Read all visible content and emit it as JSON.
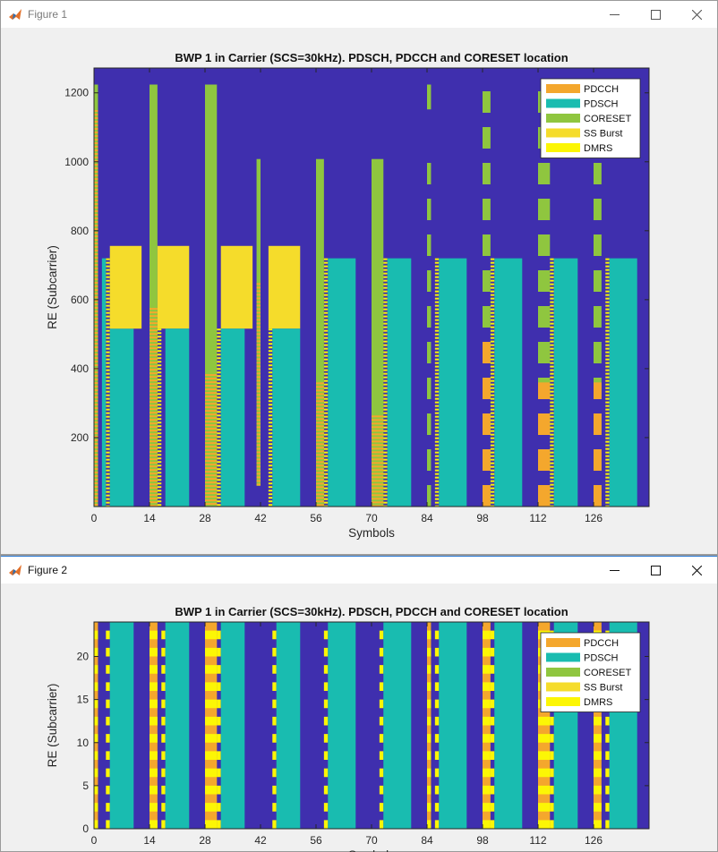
{
  "windows": [
    {
      "title": "Figure 1",
      "minimize_icon": "minimize-icon",
      "maximize_icon": "maximize-icon",
      "close_icon": "close-icon"
    },
    {
      "title": "Figure 2",
      "minimize_icon": "minimize-icon",
      "maximize_icon": "maximize-icon",
      "close_icon": "close-icon"
    }
  ],
  "colors": {
    "background": "#3f2fae",
    "PDCCH": "#f4a72d",
    "PDSCH": "#19bcb0",
    "CORESET": "#8fc63f",
    "SS Burst": "#f5dc2b",
    "DMRS": "#fcf605",
    "window_bg": "#f0f0f0"
  },
  "chart_data": [
    {
      "type": "heatmap",
      "title": "BWP 1 in Carrier (SCS=30kHz). PDSCH, PDCCH and CORESET location",
      "xlabel": "Symbols",
      "ylabel": "RE (Subcarrier)",
      "xlim": [
        0,
        140
      ],
      "ylim": [
        0,
        1272
      ],
      "xticks": [
        0,
        14,
        28,
        42,
        56,
        70,
        84,
        98,
        112,
        126
      ],
      "yticks": [
        200,
        400,
        600,
        800,
        1000,
        1200
      ],
      "grid": false,
      "legend": {
        "placement": "top-right",
        "entries": [
          "PDCCH",
          "PDSCH",
          "CORESET",
          "SS Burst",
          "DMRS"
        ]
      },
      "regions": [
        {
          "type": "CORESET",
          "x": [
            0,
            1
          ],
          "y": [
            0,
            1224
          ]
        },
        {
          "type": "PDCCH",
          "x": [
            0,
            1
          ],
          "y": [
            0,
            1150
          ],
          "striped": true
        },
        {
          "type": "DMRS",
          "x": [
            3,
            4
          ],
          "y": [
            0,
            720
          ],
          "striped": true
        },
        {
          "type": "PDSCH",
          "x": [
            2,
            3
          ],
          "y": [
            0,
            720
          ]
        },
        {
          "type": "PDSCH",
          "x": [
            4,
            10
          ],
          "y": [
            0,
            516
          ]
        },
        {
          "type": "SS Burst",
          "x": [
            4,
            12
          ],
          "y": [
            516,
            756
          ]
        },
        {
          "type": "CORESET",
          "x": [
            14,
            16
          ],
          "y": [
            0,
            1224
          ]
        },
        {
          "type": "PDCCH",
          "x": [
            14,
            16
          ],
          "y": [
            0,
            576
          ],
          "striped": true
        },
        {
          "type": "DMRS",
          "x": [
            16,
            17
          ],
          "y": [
            0,
            516
          ],
          "striped": true
        },
        {
          "type": "SS Burst",
          "x": [
            16,
            24
          ],
          "y": [
            516,
            756
          ]
        },
        {
          "type": "PDSCH",
          "x": [
            18,
            24
          ],
          "y": [
            0,
            516
          ]
        },
        {
          "type": "CORESET",
          "x": [
            28,
            31
          ],
          "y": [
            0,
            1224
          ]
        },
        {
          "type": "PDCCH",
          "x": [
            28,
            31
          ],
          "y": [
            0,
            384
          ],
          "striped": true
        },
        {
          "type": "DMRS",
          "x": [
            31,
            32
          ],
          "y": [
            0,
            516
          ],
          "striped": true
        },
        {
          "type": "SS Burst",
          "x": [
            32,
            40
          ],
          "y": [
            516,
            756
          ]
        },
        {
          "type": "PDSCH",
          "x": [
            32,
            38
          ],
          "y": [
            0,
            516
          ]
        },
        {
          "type": "CORESET",
          "x": [
            41,
            42
          ],
          "y": [
            60,
            1008
          ]
        },
        {
          "type": "PDCCH",
          "x": [
            41,
            42
          ],
          "y": [
            60,
            648
          ],
          "striped": true
        },
        {
          "type": "DMRS",
          "x": [
            44,
            45
          ],
          "y": [
            0,
            516
          ],
          "striped": true
        },
        {
          "type": "SS Burst",
          "x": [
            44,
            52
          ],
          "y": [
            516,
            756
          ]
        },
        {
          "type": "PDSCH",
          "x": [
            45,
            52
          ],
          "y": [
            0,
            516
          ]
        },
        {
          "type": "CORESET",
          "x": [
            56,
            58
          ],
          "y": [
            0,
            1008
          ]
        },
        {
          "type": "PDCCH",
          "x": [
            56,
            58
          ],
          "y": [
            0,
            360
          ],
          "striped": true
        },
        {
          "type": "DMRS",
          "x": [
            58,
            59
          ],
          "y": [
            0,
            720
          ],
          "striped": true
        },
        {
          "type": "PDSCH",
          "x": [
            59,
            66
          ],
          "y": [
            0,
            720
          ]
        },
        {
          "type": "CORESET",
          "x": [
            70,
            73
          ],
          "y": [
            0,
            1008
          ]
        },
        {
          "type": "PDCCH",
          "x": [
            70,
            73
          ],
          "y": [
            0,
            264
          ],
          "striped": true
        },
        {
          "type": "DMRS",
          "x": [
            73,
            74
          ],
          "y": [
            0,
            720
          ],
          "striped": true
        },
        {
          "type": "PDSCH",
          "x": [
            74,
            80
          ],
          "y": [
            0,
            720
          ]
        },
        {
          "type": "CORESET",
          "x": [
            84,
            85
          ],
          "y": [
            1152,
            1224
          ]
        },
        {
          "type": "CORESET",
          "x": [
            84,
            85
          ],
          "y": [
            0,
            1008
          ],
          "segmented": true
        },
        {
          "type": "DMRS",
          "x": [
            86,
            87
          ],
          "y": [
            0,
            720
          ],
          "striped": true
        },
        {
          "type": "PDSCH",
          "x": [
            87,
            94
          ],
          "y": [
            0,
            720
          ]
        },
        {
          "type": "CORESET",
          "x": [
            98,
            100
          ],
          "y": [
            0,
            1224
          ],
          "segmented": true
        },
        {
          "type": "PDCCH",
          "x": [
            98,
            100
          ],
          "y": [
            0,
            504
          ],
          "segmented": true
        },
        {
          "type": "DMRS",
          "x": [
            100,
            101
          ],
          "y": [
            0,
            720
          ],
          "striped": true
        },
        {
          "type": "PDSCH",
          "x": [
            101,
            108
          ],
          "y": [
            0,
            720
          ]
        },
        {
          "type": "CORESET",
          "x": [
            112,
            115
          ],
          "y": [
            0,
            1224
          ],
          "segmented": true
        },
        {
          "type": "PDCCH",
          "x": [
            112,
            115
          ],
          "y": [
            0,
            360
          ],
          "segmented": true
        },
        {
          "type": "DMRS",
          "x": [
            115,
            116
          ],
          "y": [
            0,
            720
          ],
          "striped": true
        },
        {
          "type": "PDSCH",
          "x": [
            116,
            122
          ],
          "y": [
            0,
            720
          ]
        },
        {
          "type": "CORESET",
          "x": [
            126,
            128
          ],
          "y": [
            0,
            1224
          ],
          "segmented": true
        },
        {
          "type": "PDCCH",
          "x": [
            126,
            128
          ],
          "y": [
            0,
            360
          ],
          "segmented": true
        },
        {
          "type": "DMRS",
          "x": [
            129,
            130
          ],
          "y": [
            0,
            720
          ],
          "striped": true
        },
        {
          "type": "PDSCH",
          "x": [
            130,
            137
          ],
          "y": [
            0,
            720
          ]
        }
      ]
    },
    {
      "type": "heatmap",
      "title": "BWP 1 in Carrier (SCS=30kHz). PDSCH, PDCCH and CORESET location",
      "xlabel": "Symbols",
      "ylabel": "RE (Subcarrier)",
      "xlim": [
        0,
        140
      ],
      "ylim": [
        0,
        24
      ],
      "xticks": [
        0,
        14,
        28,
        42,
        56,
        70,
        84,
        98,
        112,
        126
      ],
      "yticks": [
        0,
        5,
        10,
        15,
        20
      ],
      "grid": false,
      "legend": {
        "placement": "top-right",
        "entries": [
          "PDCCH",
          "PDSCH",
          "CORESET",
          "SS Burst",
          "DMRS"
        ]
      },
      "regions": [
        {
          "type": "PDCCH",
          "x": [
            0,
            1
          ],
          "y": [
            0,
            24
          ]
        },
        {
          "type": "DMRS",
          "x": [
            0,
            1
          ],
          "y": [
            0,
            24
          ],
          "dashed": true
        },
        {
          "type": "DMRS",
          "x": [
            3,
            4
          ],
          "y": [
            0,
            24
          ],
          "dashed": true
        },
        {
          "type": "PDSCH",
          "x": [
            4,
            10
          ],
          "y": [
            0,
            24
          ]
        },
        {
          "type": "PDCCH",
          "x": [
            14,
            16
          ],
          "y": [
            0,
            24
          ]
        },
        {
          "type": "DMRS",
          "x": [
            14,
            16
          ],
          "y": [
            0,
            24
          ],
          "dashed": true
        },
        {
          "type": "DMRS",
          "x": [
            17,
            18
          ],
          "y": [
            0,
            24
          ],
          "dashed": true
        },
        {
          "type": "PDSCH",
          "x": [
            18,
            24
          ],
          "y": [
            0,
            24
          ]
        },
        {
          "type": "PDCCH",
          "x": [
            28,
            31
          ],
          "y": [
            0,
            24
          ]
        },
        {
          "type": "DMRS",
          "x": [
            28,
            31
          ],
          "y": [
            0,
            24
          ],
          "dashed": true
        },
        {
          "type": "DMRS",
          "x": [
            31,
            32
          ],
          "y": [
            0,
            24
          ],
          "dashed": true
        },
        {
          "type": "PDSCH",
          "x": [
            32,
            38
          ],
          "y": [
            0,
            24
          ]
        },
        {
          "type": "DMRS",
          "x": [
            45,
            46
          ],
          "y": [
            0,
            24
          ],
          "dashed": true
        },
        {
          "type": "PDSCH",
          "x": [
            46,
            52
          ],
          "y": [
            0,
            24
          ]
        },
        {
          "type": "DMRS",
          "x": [
            58,
            59
          ],
          "y": [
            0,
            24
          ],
          "dashed": true
        },
        {
          "type": "PDSCH",
          "x": [
            59,
            66
          ],
          "y": [
            0,
            24
          ]
        },
        {
          "type": "DMRS",
          "x": [
            72,
            73
          ],
          "y": [
            0,
            24
          ],
          "dashed": true
        },
        {
          "type": "PDSCH",
          "x": [
            73,
            80
          ],
          "y": [
            0,
            24
          ]
        },
        {
          "type": "PDCCH",
          "x": [
            84,
            85
          ],
          "y": [
            0,
            24
          ]
        },
        {
          "type": "DMRS",
          "x": [
            84,
            85
          ],
          "y": [
            0,
            24
          ],
          "dashed": true
        },
        {
          "type": "DMRS",
          "x": [
            86,
            87
          ],
          "y": [
            0,
            24
          ],
          "dashed": true
        },
        {
          "type": "PDSCH",
          "x": [
            87,
            94
          ],
          "y": [
            0,
            24
          ]
        },
        {
          "type": "PDCCH",
          "x": [
            98,
            100
          ],
          "y": [
            0,
            24
          ]
        },
        {
          "type": "DMRS",
          "x": [
            98,
            100
          ],
          "y": [
            0,
            24
          ],
          "dashed": true
        },
        {
          "type": "DMRS",
          "x": [
            100,
            101
          ],
          "y": [
            0,
            24
          ],
          "dashed": true
        },
        {
          "type": "PDSCH",
          "x": [
            101,
            108
          ],
          "y": [
            0,
            24
          ]
        },
        {
          "type": "PDCCH",
          "x": [
            112,
            115
          ],
          "y": [
            0,
            24
          ]
        },
        {
          "type": "DMRS",
          "x": [
            112,
            115
          ],
          "y": [
            0,
            24
          ],
          "dashed": true
        },
        {
          "type": "DMRS",
          "x": [
            115,
            116
          ],
          "y": [
            0,
            24
          ],
          "dashed": true
        },
        {
          "type": "PDSCH",
          "x": [
            116,
            122
          ],
          "y": [
            0,
            24
          ]
        },
        {
          "type": "PDCCH",
          "x": [
            126,
            128
          ],
          "y": [
            0,
            24
          ]
        },
        {
          "type": "DMRS",
          "x": [
            126,
            128
          ],
          "y": [
            0,
            24
          ],
          "dashed": true
        },
        {
          "type": "DMRS",
          "x": [
            129,
            130
          ],
          "y": [
            0,
            24
          ],
          "dashed": true
        },
        {
          "type": "PDSCH",
          "x": [
            130,
            137
          ],
          "y": [
            0,
            24
          ]
        }
      ]
    }
  ]
}
